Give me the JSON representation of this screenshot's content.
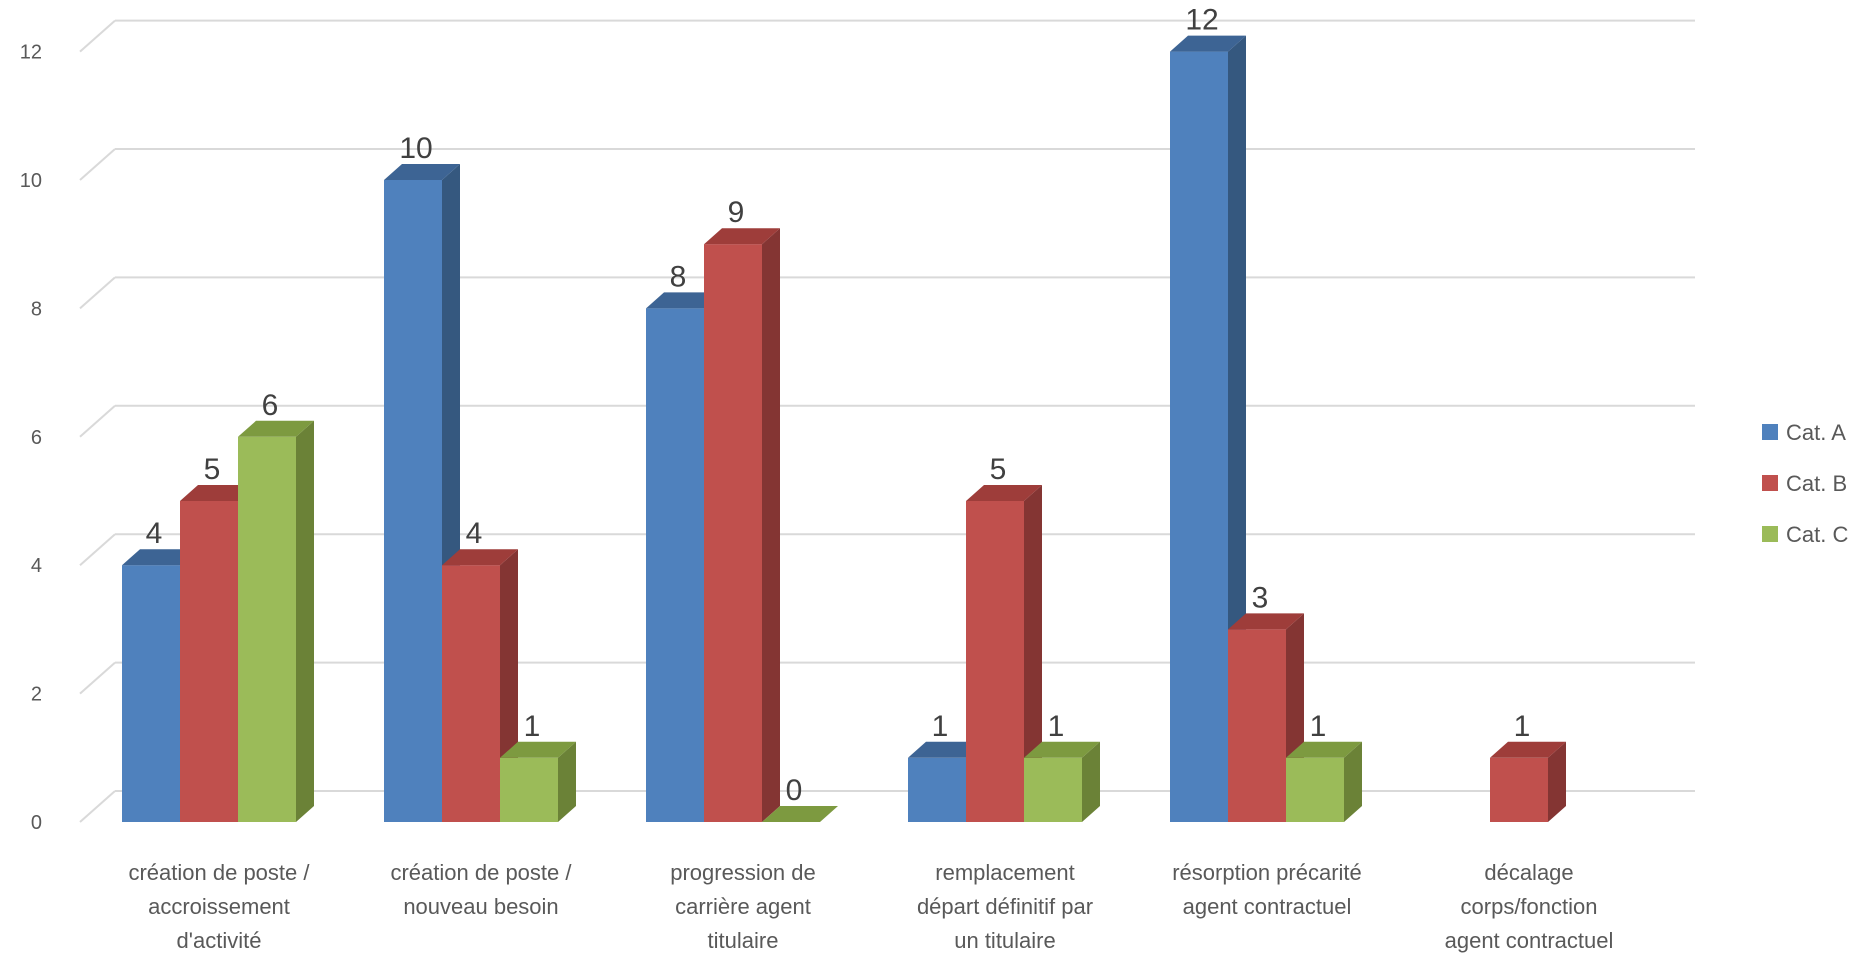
{
  "chart_data": {
    "type": "bar",
    "categories": [
      [
        "création de poste /",
        "accroissement",
        "d'activité"
      ],
      [
        "création de poste /",
        "nouveau besoin"
      ],
      [
        "progression de",
        "carrière agent",
        "titulaire"
      ],
      [
        "remplacement",
        "départ définitif par",
        "un titulaire"
      ],
      [
        "résorption précarité",
        "agent contractuel"
      ],
      [
        "décalage",
        "corps/fonction",
        "agent contractuel"
      ]
    ],
    "series": [
      {
        "name": "Cat. A",
        "values": [
          4,
          10,
          8,
          1,
          12,
          null
        ],
        "color": "#4F81BD",
        "side": "#35587F",
        "top": "#3D6494"
      },
      {
        "name": "Cat. B",
        "values": [
          5,
          4,
          9,
          5,
          3,
          1
        ],
        "color": "#C0504D",
        "side": "#843533",
        "top": "#9E3D3A"
      },
      {
        "name": "Cat. C",
        "values": [
          6,
          1,
          0,
          1,
          1,
          null
        ],
        "color": "#9BBB59",
        "side": "#6B8237",
        "top": "#7D9A40"
      }
    ],
    "yticks": [
      0,
      2,
      4,
      6,
      8,
      10,
      12
    ],
    "ylim": [
      0,
      12
    ],
    "grid": true,
    "legend": "right",
    "data_labels": true
  }
}
